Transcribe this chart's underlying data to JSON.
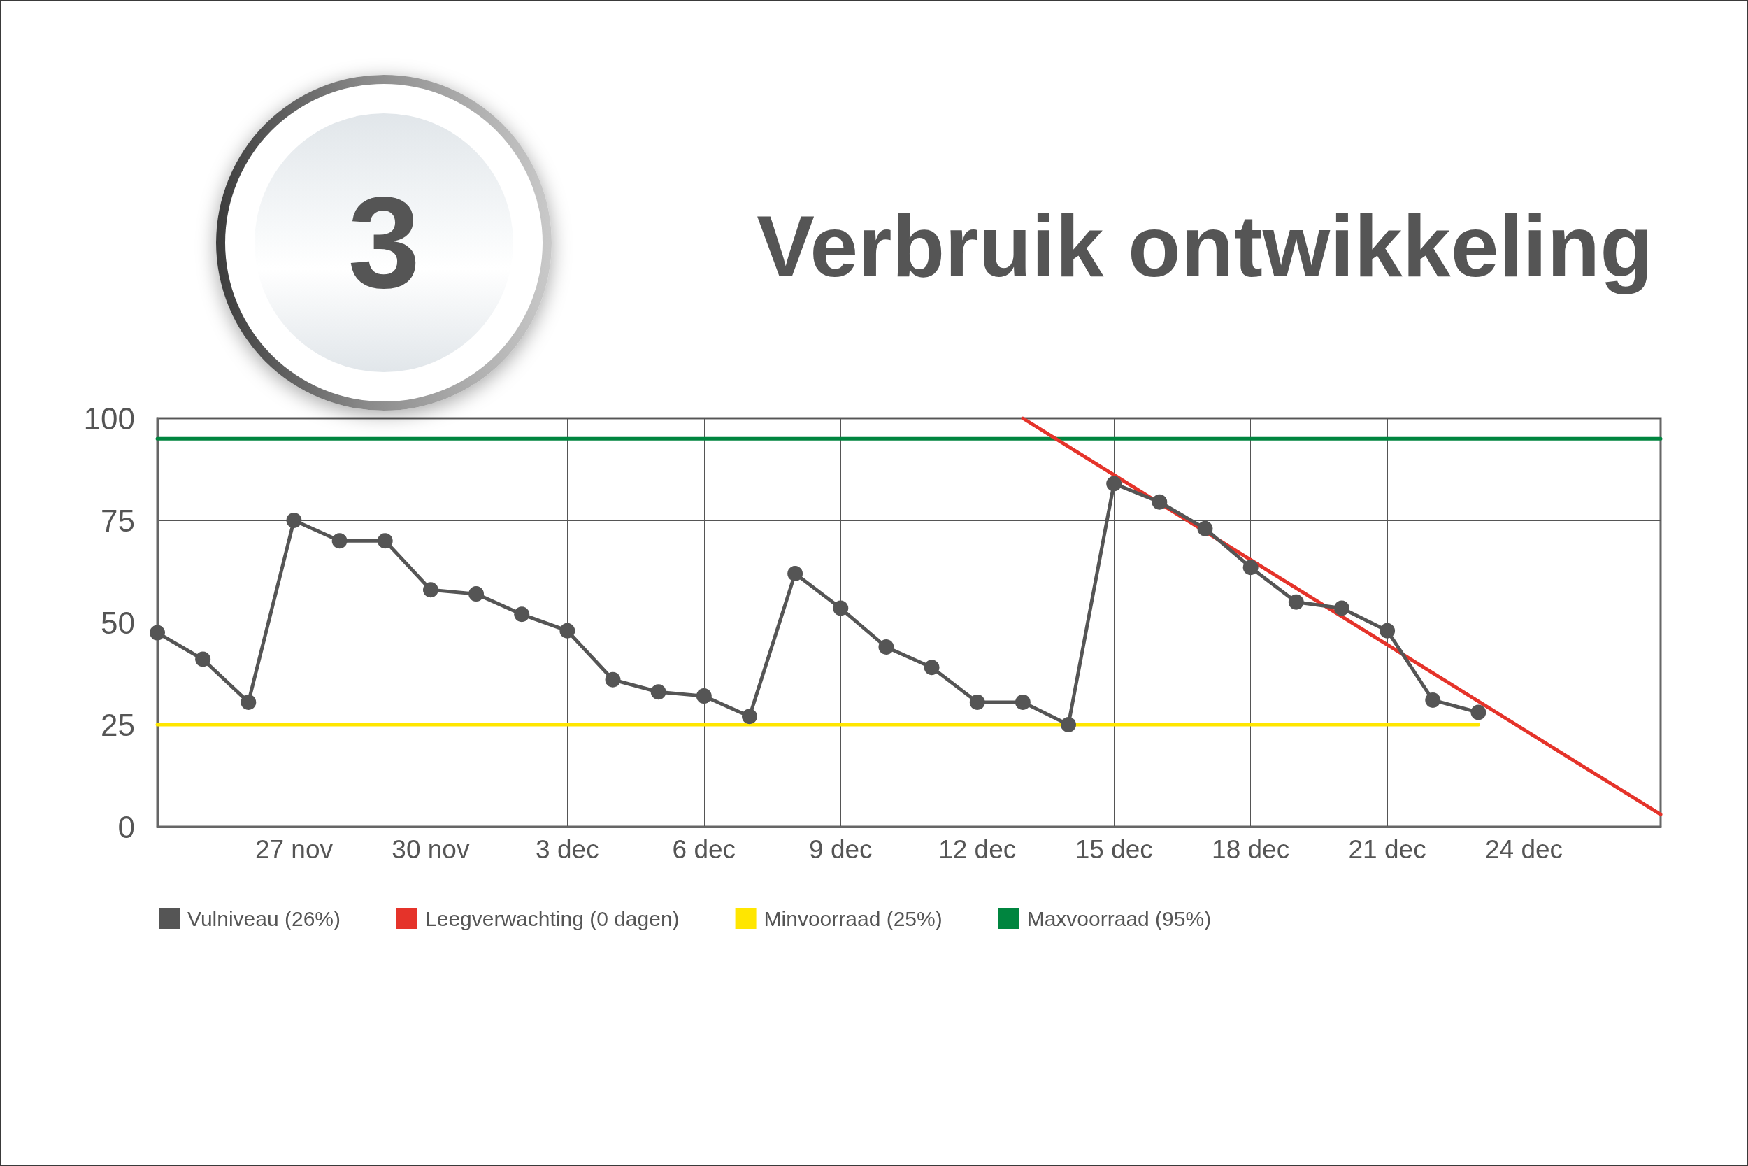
{
  "chart_data": {
    "type": "line",
    "title": "Verbruik ontwikkeling",
    "annotations": [
      "3"
    ],
    "xlim": [
      "--11-24",
      "--12-27"
    ],
    "xticks": [
      {
        "value": "--11-27",
        "label": "27 nov"
      },
      {
        "value": "--11-30",
        "label": "30 nov"
      },
      {
        "value": "--12-03",
        "label": "3 dec"
      },
      {
        "value": "--12-06",
        "label": "6 dec"
      },
      {
        "value": "--12-09",
        "label": "9 dec"
      },
      {
        "value": "--12-12",
        "label": "12 dec"
      },
      {
        "value": "--12-15",
        "label": "15 dec"
      },
      {
        "value": "--12-18",
        "label": "18 dec"
      },
      {
        "value": "--12-21",
        "label": "21 dec"
      },
      {
        "value": "--12-24",
        "label": "24 dec"
      }
    ],
    "ylim": [
      0,
      100
    ],
    "yticks": [
      0,
      25,
      50,
      75,
      100
    ],
    "grid": true,
    "legend": "bottom left",
    "marker": "circle",
    "line_style": "solid",
    "series": [
      {
        "name": "Vulniveau (26%)",
        "color": "#555555",
        "x": [
          "--11-24",
          "--11-25",
          "--11-26",
          "--11-27",
          "--11-28",
          "--11-29",
          "--11-30",
          "--12-01",
          "--12-02",
          "--12-03",
          "--12-04",
          "--12-05",
          "--12-06",
          "--12-07",
          "--12-08",
          "--12-09",
          "--12-10",
          "--12-11",
          "--12-12",
          "--12-13",
          "--12-14",
          "--12-15",
          "--12-16",
          "--12-17",
          "--12-18",
          "--12-19",
          "--12-20",
          "--12-21",
          "--12-22",
          "--12-23"
        ],
        "values": [
          47.5,
          41,
          30.5,
          75,
          70,
          70,
          58,
          57,
          52,
          48,
          36,
          33,
          32,
          27,
          62,
          53.5,
          44,
          39,
          30.5,
          30.5,
          25,
          84,
          79.5,
          73,
          63.5,
          55,
          53.5,
          48,
          31,
          28
        ]
      },
      {
        "name": "Leegverwachting (0 dagen)",
        "color": "#e5332a",
        "marker": "none",
        "x": [
          "--12-13",
          "--12-27"
        ],
        "values": [
          100,
          3
        ]
      },
      {
        "name": "Minvoorraad (25%)",
        "color": "#ffe600",
        "marker": "none",
        "x": [
          "--11-24",
          "--12-23"
        ],
        "values": [
          25,
          25
        ]
      },
      {
        "name": "Maxvoorraad (95%)",
        "color": "#00853f",
        "marker": "none",
        "x": [
          "--11-24",
          "--12-27"
        ],
        "values": [
          95,
          95
        ]
      }
    ]
  }
}
